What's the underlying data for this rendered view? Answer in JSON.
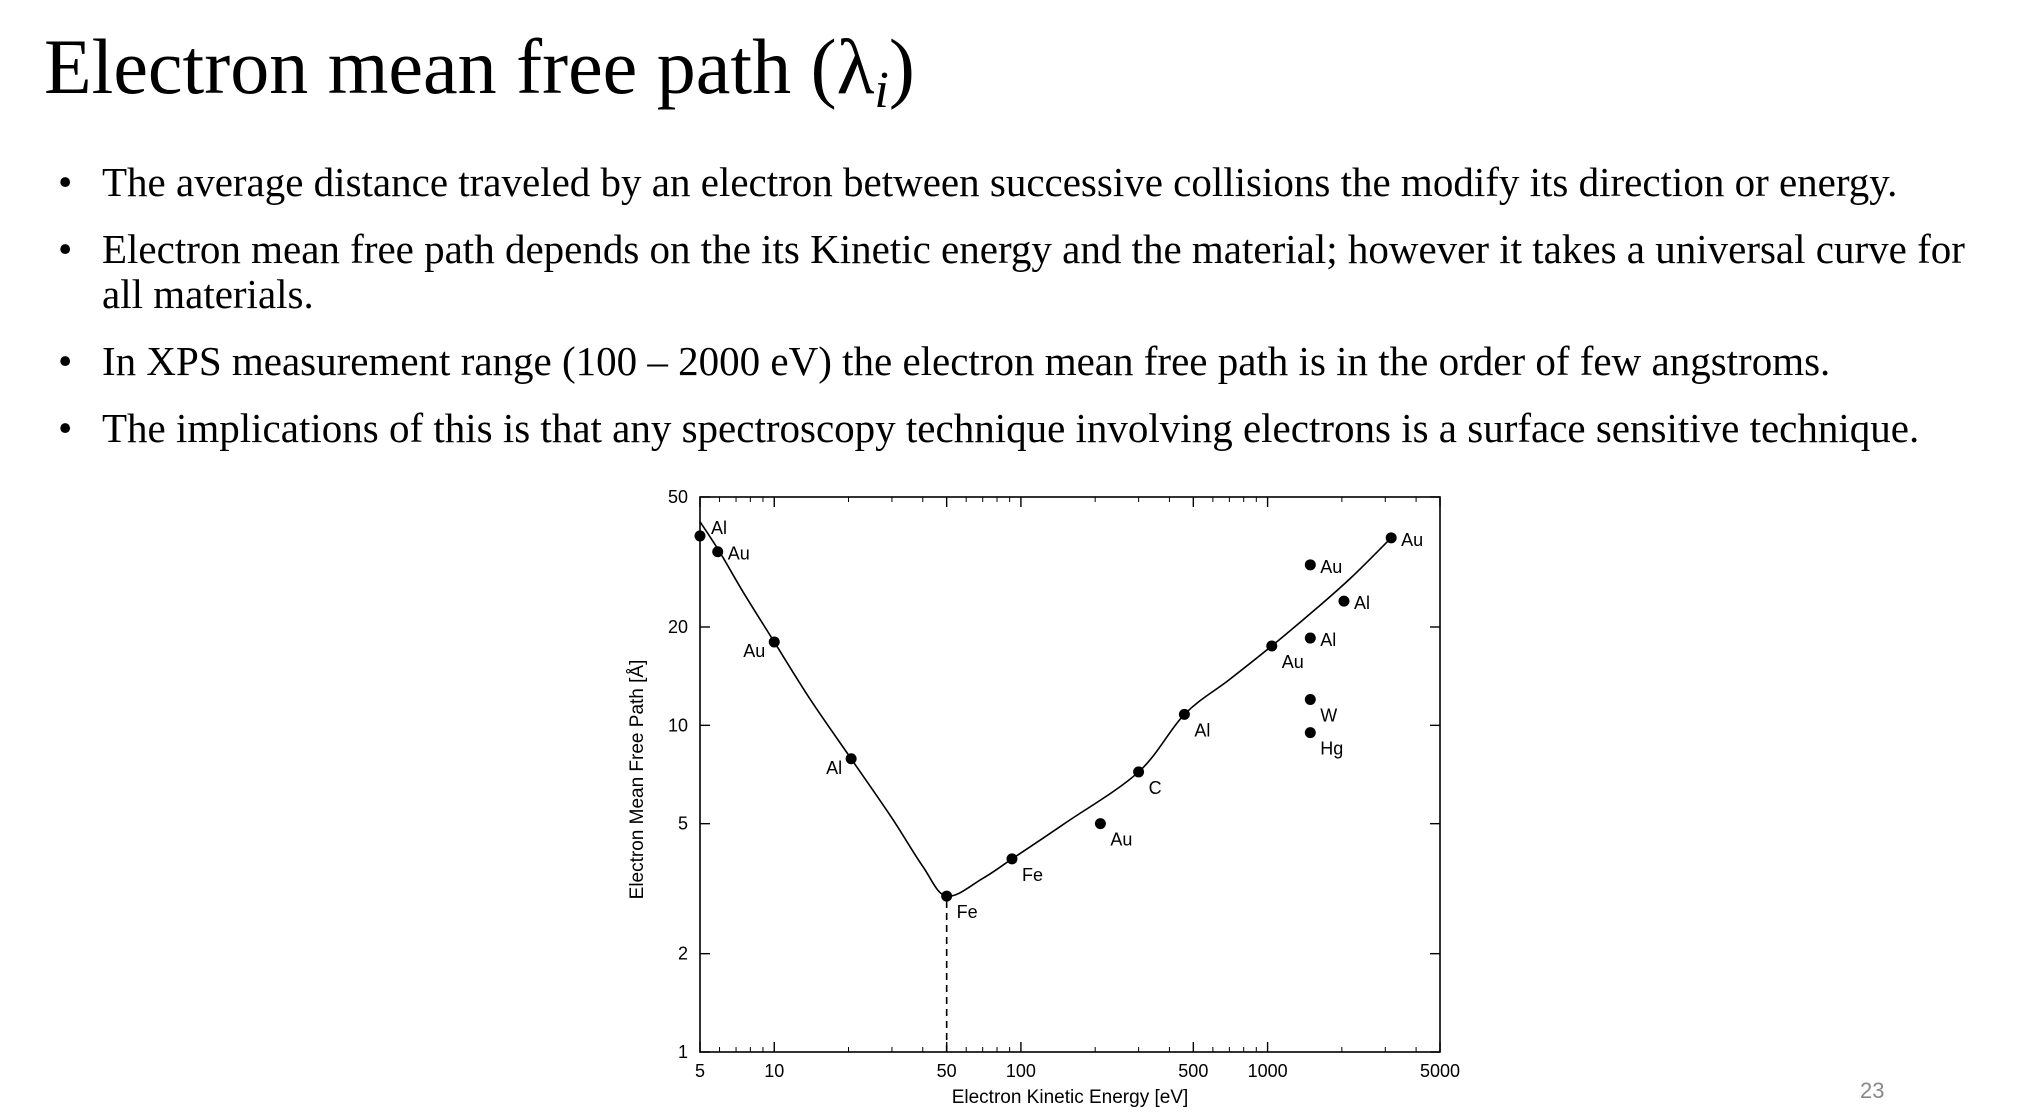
{
  "slide": {
    "title_main": "Electron mean free path (",
    "title_symbol": "λ",
    "title_subscript": "i",
    "title_close": ")",
    "bullets": [
      "The average distance traveled by an electron between successive collisions the modify its direction or energy.",
      "Electron mean free path depends on the its Kinetic energy and the material; however it takes a universal curve for all materials.",
      "In XPS measurement range (100 – 2000 eV) the electron mean free path is in the order of few angstroms.",
      "The implications of this is that any spectroscopy technique involving electrons is a surface sensitive technique."
    ],
    "page_number": "23"
  },
  "chart_data": {
    "type": "scatter",
    "title": "",
    "xlabel": "Electron Kinetic Energy  [eV]",
    "ylabel": "Electron Mean Free Path  [Å]",
    "xscale": "log",
    "yscale": "log",
    "xlim": [
      5,
      5000
    ],
    "ylim": [
      1,
      50
    ],
    "xticks": [
      {
        "value": 5,
        "label": "5"
      },
      {
        "value": 10,
        "label": "10"
      },
      {
        "value": 50,
        "label": "50"
      },
      {
        "value": 100,
        "label": "100"
      },
      {
        "value": 500,
        "label": "500"
      },
      {
        "value": 1000,
        "label": "1000"
      },
      {
        "value": 5000,
        "label": "5000"
      }
    ],
    "yticks": [
      {
        "value": 1,
        "label": "1"
      },
      {
        "value": 2,
        "label": "2"
      },
      {
        "value": 5,
        "label": "5"
      },
      {
        "value": 10,
        "label": "10"
      },
      {
        "value": 20,
        "label": "20"
      },
      {
        "value": 50,
        "label": "50"
      }
    ],
    "points": [
      {
        "x": 5.0,
        "y": 38.0,
        "label": "Al",
        "anchor": "upper-right"
      },
      {
        "x": 5.9,
        "y": 34.0,
        "label": "Au",
        "anchor": "right"
      },
      {
        "x": 10.0,
        "y": 18.0,
        "label": "Au",
        "anchor": "lower-left"
      },
      {
        "x": 20.5,
        "y": 7.9,
        "label": "Al",
        "anchor": "lower-left"
      },
      {
        "x": 50.0,
        "y": 3.0,
        "label": "Fe",
        "anchor": "lower-right"
      },
      {
        "x": 92.0,
        "y": 3.9,
        "label": "Fe",
        "anchor": "lower-right"
      },
      {
        "x": 210.0,
        "y": 5.0,
        "label": "Au",
        "anchor": "lower-right"
      },
      {
        "x": 300.0,
        "y": 7.2,
        "label": "C",
        "anchor": "lower-right"
      },
      {
        "x": 460.0,
        "y": 10.8,
        "label": "Al",
        "anchor": "lower-right"
      },
      {
        "x": 1040.0,
        "y": 17.5,
        "label": "Au",
        "anchor": "lower-right"
      },
      {
        "x": 1490.0,
        "y": 18.5,
        "label": "Al",
        "anchor": "right"
      },
      {
        "x": 1490.0,
        "y": 12.0,
        "label": "W",
        "anchor": "lower-right"
      },
      {
        "x": 1490.0,
        "y": 9.5,
        "label": "Hg",
        "anchor": "lower-right"
      },
      {
        "x": 1490.0,
        "y": 31.0,
        "label": "Au",
        "anchor": "right"
      },
      {
        "x": 2040.0,
        "y": 24.0,
        "label": "Al",
        "anchor": "right"
      },
      {
        "x": 3170.0,
        "y": 37.5,
        "label": "Au",
        "anchor": "right"
      }
    ],
    "curve": [
      [
        5.0,
        42.0
      ],
      [
        6.0,
        34.0
      ],
      [
        7.5,
        25.5
      ],
      [
        10.0,
        18.0
      ],
      [
        14.0,
        12.0
      ],
      [
        20.5,
        7.9
      ],
      [
        30.0,
        5.2
      ],
      [
        40.0,
        3.7
      ],
      [
        50.0,
        3.0
      ],
      [
        70.0,
        3.4
      ],
      [
        92.0,
        3.9
      ],
      [
        150.0,
        5.0
      ],
      [
        300.0,
        7.2
      ],
      [
        460.0,
        10.8
      ],
      [
        700.0,
        13.8
      ],
      [
        1040.0,
        17.5
      ],
      [
        1600.0,
        23.0
      ],
      [
        2200.0,
        28.5
      ],
      [
        3170.0,
        37.5
      ]
    ],
    "reference_line": {
      "x": 50,
      "from_y": 1,
      "to_y": 3.0,
      "style": "dashed"
    },
    "grid": false,
    "legend": "none"
  }
}
